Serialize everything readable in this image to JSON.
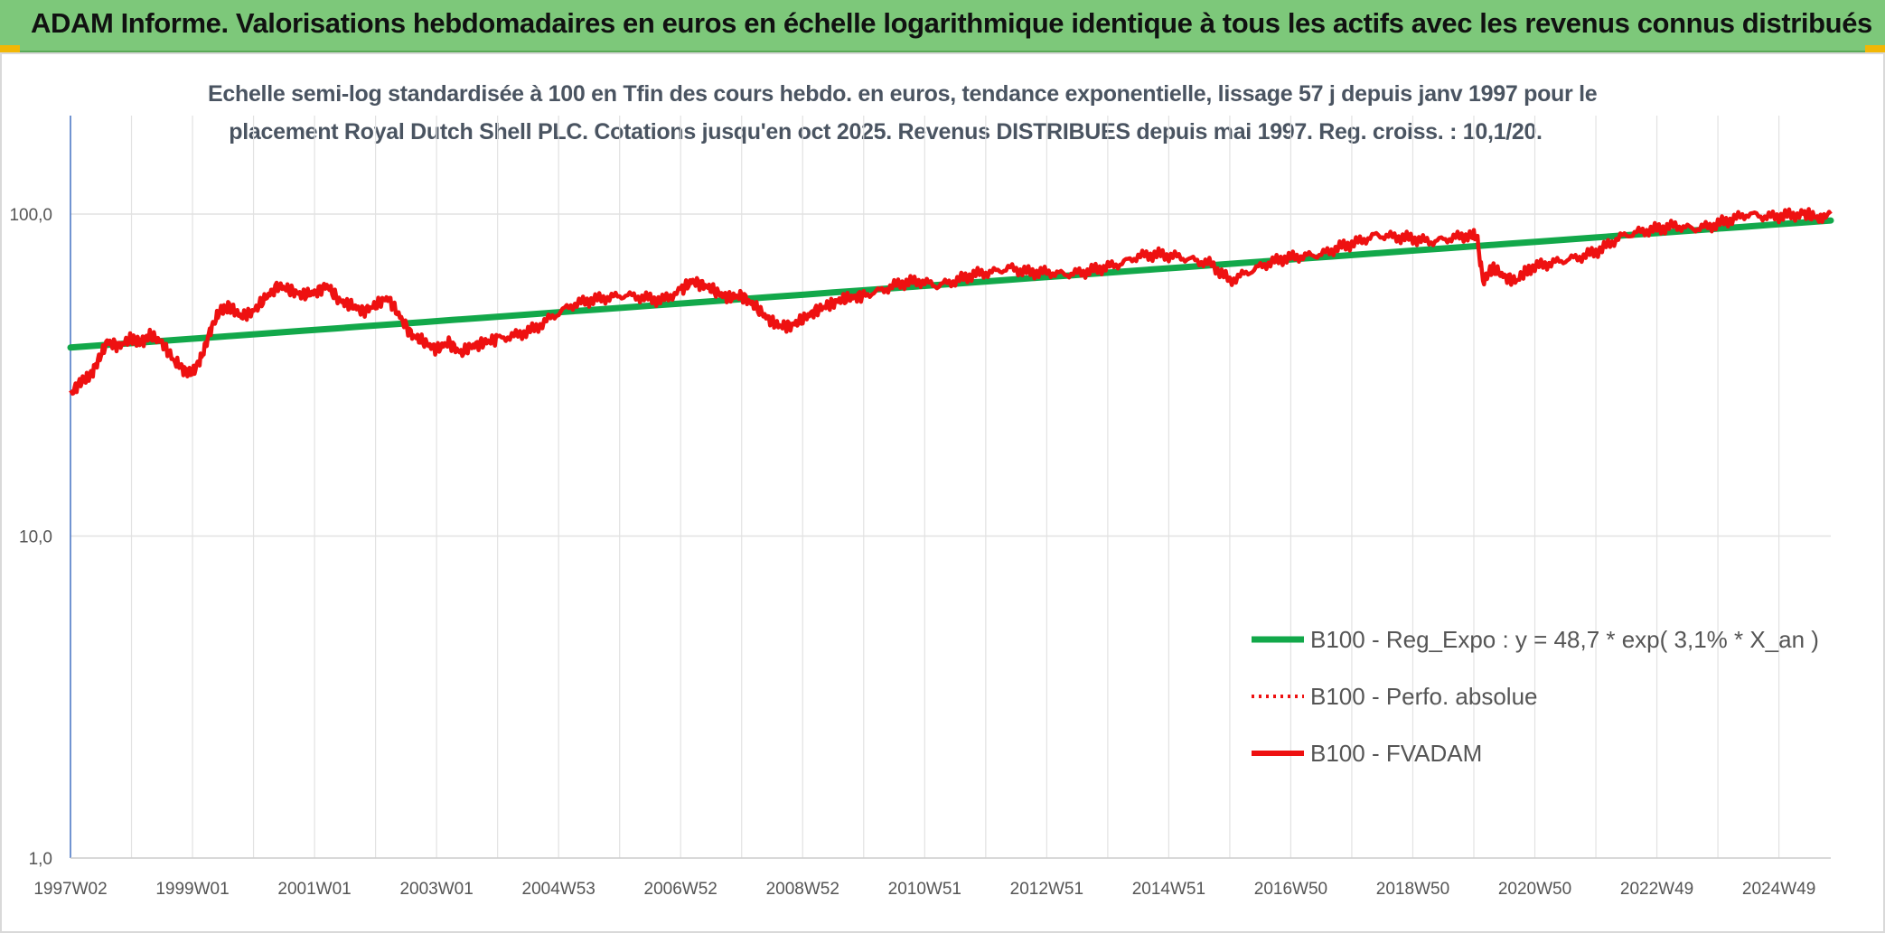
{
  "banner": {
    "title": "ADAM Informe. Valorisations hebdomadaires en euros en échelle logarithmique identique à tous les actifs avec les revenus connus distribués"
  },
  "colors": {
    "banner": "#7dc87a",
    "corner": "#f2b705",
    "trend": "#12a84a",
    "series": "#ee1111",
    "grid": "#e2e2e2"
  },
  "chart_data": {
    "type": "line",
    "title_line1": "Echelle semi-log standardisée à 100 en Tfin des cours hebdo. en euros, tendance exponentielle, lissage 57 j depuis janv 1997 pour le",
    "title_line2": "placement Royal Dutch Shell PLC. Cotations jusqu'en oct 2025. Revenus DISTRIBUES depuis mai 1997. Reg. croiss. : 10,1/20.",
    "yscale": "log",
    "ylim": [
      1,
      200
    ],
    "y_ticks": [
      {
        "value": 1,
        "label": "1,0"
      },
      {
        "value": 10,
        "label": "10,0"
      },
      {
        "value": 100,
        "label": "100,0"
      }
    ],
    "xlim": [
      1997.0,
      2025.85
    ],
    "x_ticks": [
      {
        "t": 1997.0,
        "label": "1997W02"
      },
      {
        "t": 1999.0,
        "label": "1999W01"
      },
      {
        "t": 2001.0,
        "label": "2001W01"
      },
      {
        "t": 2003.0,
        "label": "2003W01"
      },
      {
        "t": 2005.0,
        "label": "2004W53"
      },
      {
        "t": 2007.0,
        "label": "2006W52"
      },
      {
        "t": 2009.0,
        "label": "2008W52"
      },
      {
        "t": 2011.0,
        "label": "2010W51"
      },
      {
        "t": 2013.0,
        "label": "2012W51"
      },
      {
        "t": 2015.0,
        "label": "2014W51"
      },
      {
        "t": 2017.0,
        "label": "2016W50"
      },
      {
        "t": 2019.0,
        "label": "2018W50"
      },
      {
        "t": 2021.0,
        "label": "2020W50"
      },
      {
        "t": 2023.0,
        "label": "2022W49"
      },
      {
        "t": 2025.0,
        "label": "2024W49"
      }
    ],
    "series": [
      {
        "name": "B100 - Reg_Expo : y = 48,7 * exp( 3,1% *  X_an )",
        "style": "trend",
        "x": [
          1997.0,
          2025.85
        ],
        "y": [
          38.5,
          95.5
        ]
      },
      {
        "name": "B100 - Perfo. absolue",
        "style": "dotted",
        "x": [],
        "y": []
      },
      {
        "name": "B100 - FVADAM",
        "style": "solid",
        "x": [
          1997.0,
          1997.15,
          1997.3,
          1997.45,
          1997.6,
          1997.8,
          1998.0,
          1998.15,
          1998.3,
          1998.5,
          1998.7,
          1998.85,
          1999.0,
          1999.15,
          1999.3,
          1999.45,
          1999.6,
          1999.8,
          2000.0,
          2000.2,
          2000.4,
          2000.6,
          2000.8,
          2001.0,
          2001.2,
          2001.4,
          2001.6,
          2001.8,
          2002.0,
          2002.2,
          2002.4,
          2002.6,
          2002.8,
          2003.0,
          2003.2,
          2003.4,
          2003.6,
          2003.8,
          2004.0,
          2004.3,
          2004.6,
          2004.9,
          2005.2,
          2005.5,
          2005.8,
          2006.1,
          2006.4,
          2006.7,
          2007.0,
          2007.2,
          2007.4,
          2007.6,
          2007.8,
          2008.0,
          2008.2,
          2008.4,
          2008.6,
          2008.8,
          2009.0,
          2009.2,
          2009.4,
          2009.6,
          2009.8,
          2010.0,
          2010.3,
          2010.6,
          2010.9,
          2011.2,
          2011.5,
          2011.8,
          2012.1,
          2012.4,
          2012.7,
          2013.0,
          2013.3,
          2013.6,
          2013.9,
          2014.2,
          2014.5,
          2014.8,
          2015.1,
          2015.4,
          2015.7,
          2016.0,
          2016.3,
          2016.6,
          2016.9,
          2017.2,
          2017.5,
          2017.8,
          2018.1,
          2018.4,
          2018.7,
          2019.0,
          2019.3,
          2019.6,
          2019.9,
          2020.05,
          2020.15,
          2020.3,
          2020.5,
          2020.7,
          2020.9,
          2021.2,
          2021.5,
          2021.8,
          2022.1,
          2022.4,
          2022.7,
          2023.0,
          2023.3,
          2023.6,
          2023.9,
          2024.2,
          2024.5,
          2024.8,
          2025.1,
          2025.4,
          2025.6,
          2025.85
        ],
        "y": [
          27.5,
          30,
          31,
          35,
          40,
          39,
          41,
          40,
          42,
          40,
          35,
          33,
          32,
          36,
          44,
          50,
          52,
          48,
          50,
          55,
          60,
          58,
          56,
          57,
          60,
          54,
          52,
          50,
          52,
          55,
          48,
          42,
          40,
          38,
          40,
          37,
          39,
          40,
          41,
          42,
          44,
          48,
          52,
          54,
          55,
          56,
          55,
          54,
          58,
          62,
          60,
          57,
          55,
          56,
          52,
          48,
          45,
          45,
          47,
          50,
          52,
          54,
          55,
          56,
          58,
          61,
          62,
          60,
          62,
          65,
          66,
          68,
          66,
          66,
          65,
          66,
          68,
          70,
          74,
          75,
          74,
          72,
          70,
          62,
          66,
          70,
          73,
          74,
          75,
          79,
          82,
          86,
          85,
          84,
          82,
          84,
          86,
          85,
          62,
          68,
          64,
          62,
          68,
          70,
          72,
          74,
          78,
          85,
          88,
          90,
          92,
          90,
          92,
          96,
          100,
          98,
          99,
          100,
          98,
          100
        ]
      }
    ]
  }
}
